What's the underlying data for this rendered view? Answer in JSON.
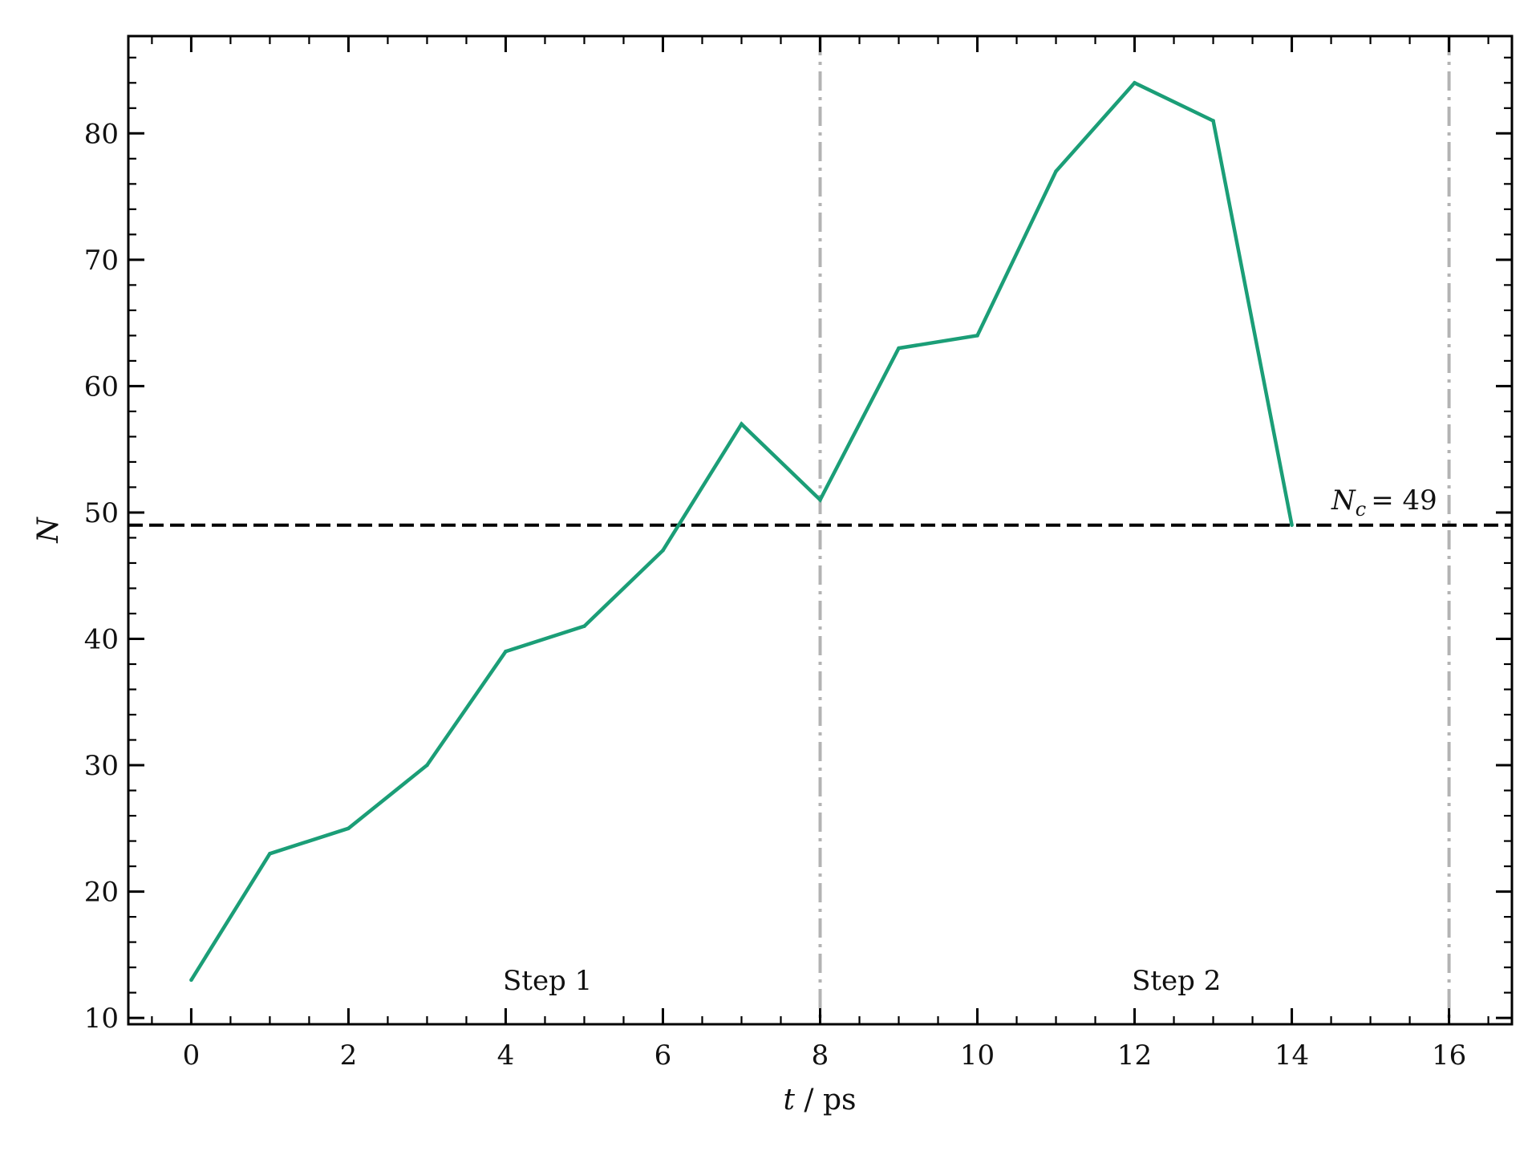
{
  "chart_data": {
    "type": "line",
    "title": "",
    "xlabel": "t / ps",
    "ylabel": "N",
    "xlim": [
      -0.8,
      16.8
    ],
    "ylim": [
      9.5,
      87.7
    ],
    "xticks": [
      0,
      2,
      4,
      6,
      8,
      10,
      12,
      14,
      16
    ],
    "yticks": [
      10,
      20,
      30,
      40,
      50,
      60,
      70,
      80
    ],
    "grid": false,
    "legend": "none",
    "series": [
      {
        "color": "#1b9e77",
        "x": [
          0,
          1,
          2,
          3,
          4,
          5,
          6,
          7,
          8,
          9,
          10,
          11,
          12,
          13,
          14
        ],
        "y": [
          13,
          23,
          25,
          30,
          39,
          41,
          47,
          57,
          51,
          63,
          64,
          77,
          84,
          81,
          49
        ]
      }
    ],
    "hlines": [
      {
        "y": 49,
        "style": "dashed",
        "color": "#000000",
        "label": "N_c = 49"
      }
    ],
    "vlines": [
      {
        "x": 8,
        "style": "dashdot",
        "color": "#b3b3b3"
      },
      {
        "x": 16,
        "style": "dashdot",
        "color": "#b3b3b3"
      }
    ],
    "annotations": [
      {
        "text": "Step 1",
        "x": 5.1,
        "y": 13
      },
      {
        "text": "Step 2",
        "x": 13.1,
        "y": 13
      }
    ]
  },
  "labels": {
    "nc_symbol": "N",
    "nc_subscript": "c",
    "nc_eq": "= 49",
    "x_var": "t",
    "x_unit": " / ps",
    "y_var": "N"
  }
}
